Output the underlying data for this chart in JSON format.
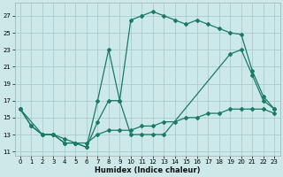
{
  "xlabel": "Humidex (Indice chaleur)",
  "bg_color": "#cce8e8",
  "grid_color": "#aacccc",
  "line_color": "#1a7a6a",
  "xlim": [
    -0.5,
    23.5
  ],
  "ylim": [
    10.5,
    28.5
  ],
  "xticks": [
    0,
    1,
    2,
    3,
    4,
    5,
    6,
    7,
    8,
    9,
    10,
    11,
    12,
    13,
    14,
    15,
    16,
    17,
    18,
    19,
    20,
    21,
    22,
    23
  ],
  "yticks": [
    11,
    13,
    15,
    17,
    19,
    21,
    23,
    25,
    27
  ],
  "line1_x": [
    0,
    1,
    2,
    3,
    4,
    5,
    6,
    7,
    8,
    9,
    10,
    11,
    12,
    13,
    14,
    15,
    16,
    17,
    18,
    19,
    20,
    21,
    22,
    23
  ],
  "line1_y": [
    16,
    14,
    13,
    13,
    12,
    12,
    11.5,
    17,
    23,
    17,
    26.5,
    27,
    27.5,
    27,
    26.5,
    26,
    26.5,
    26,
    25.5,
    25,
    24.8,
    20.5,
    17.5,
    16
  ],
  "line2_x": [
    0,
    2,
    3,
    4,
    5,
    6,
    7,
    8,
    9,
    10,
    11,
    12,
    13,
    19,
    20,
    21,
    22,
    23
  ],
  "line2_y": [
    16,
    13,
    13,
    12,
    12,
    11.5,
    14.5,
    17,
    17,
    13,
    13,
    13,
    13,
    22.5,
    23,
    20,
    17,
    16
  ],
  "line3_x": [
    0,
    1,
    2,
    3,
    4,
    5,
    6,
    7,
    8,
    9,
    10,
    11,
    12,
    13,
    14,
    15,
    16,
    17,
    18,
    19,
    20,
    21,
    22,
    23
  ],
  "line3_y": [
    16,
    14,
    13,
    13,
    12.5,
    12,
    12,
    13,
    13.5,
    13.5,
    13.5,
    14,
    14,
    14.5,
    14.5,
    15,
    15,
    15.5,
    15.5,
    16,
    16,
    16,
    16,
    15.5
  ]
}
